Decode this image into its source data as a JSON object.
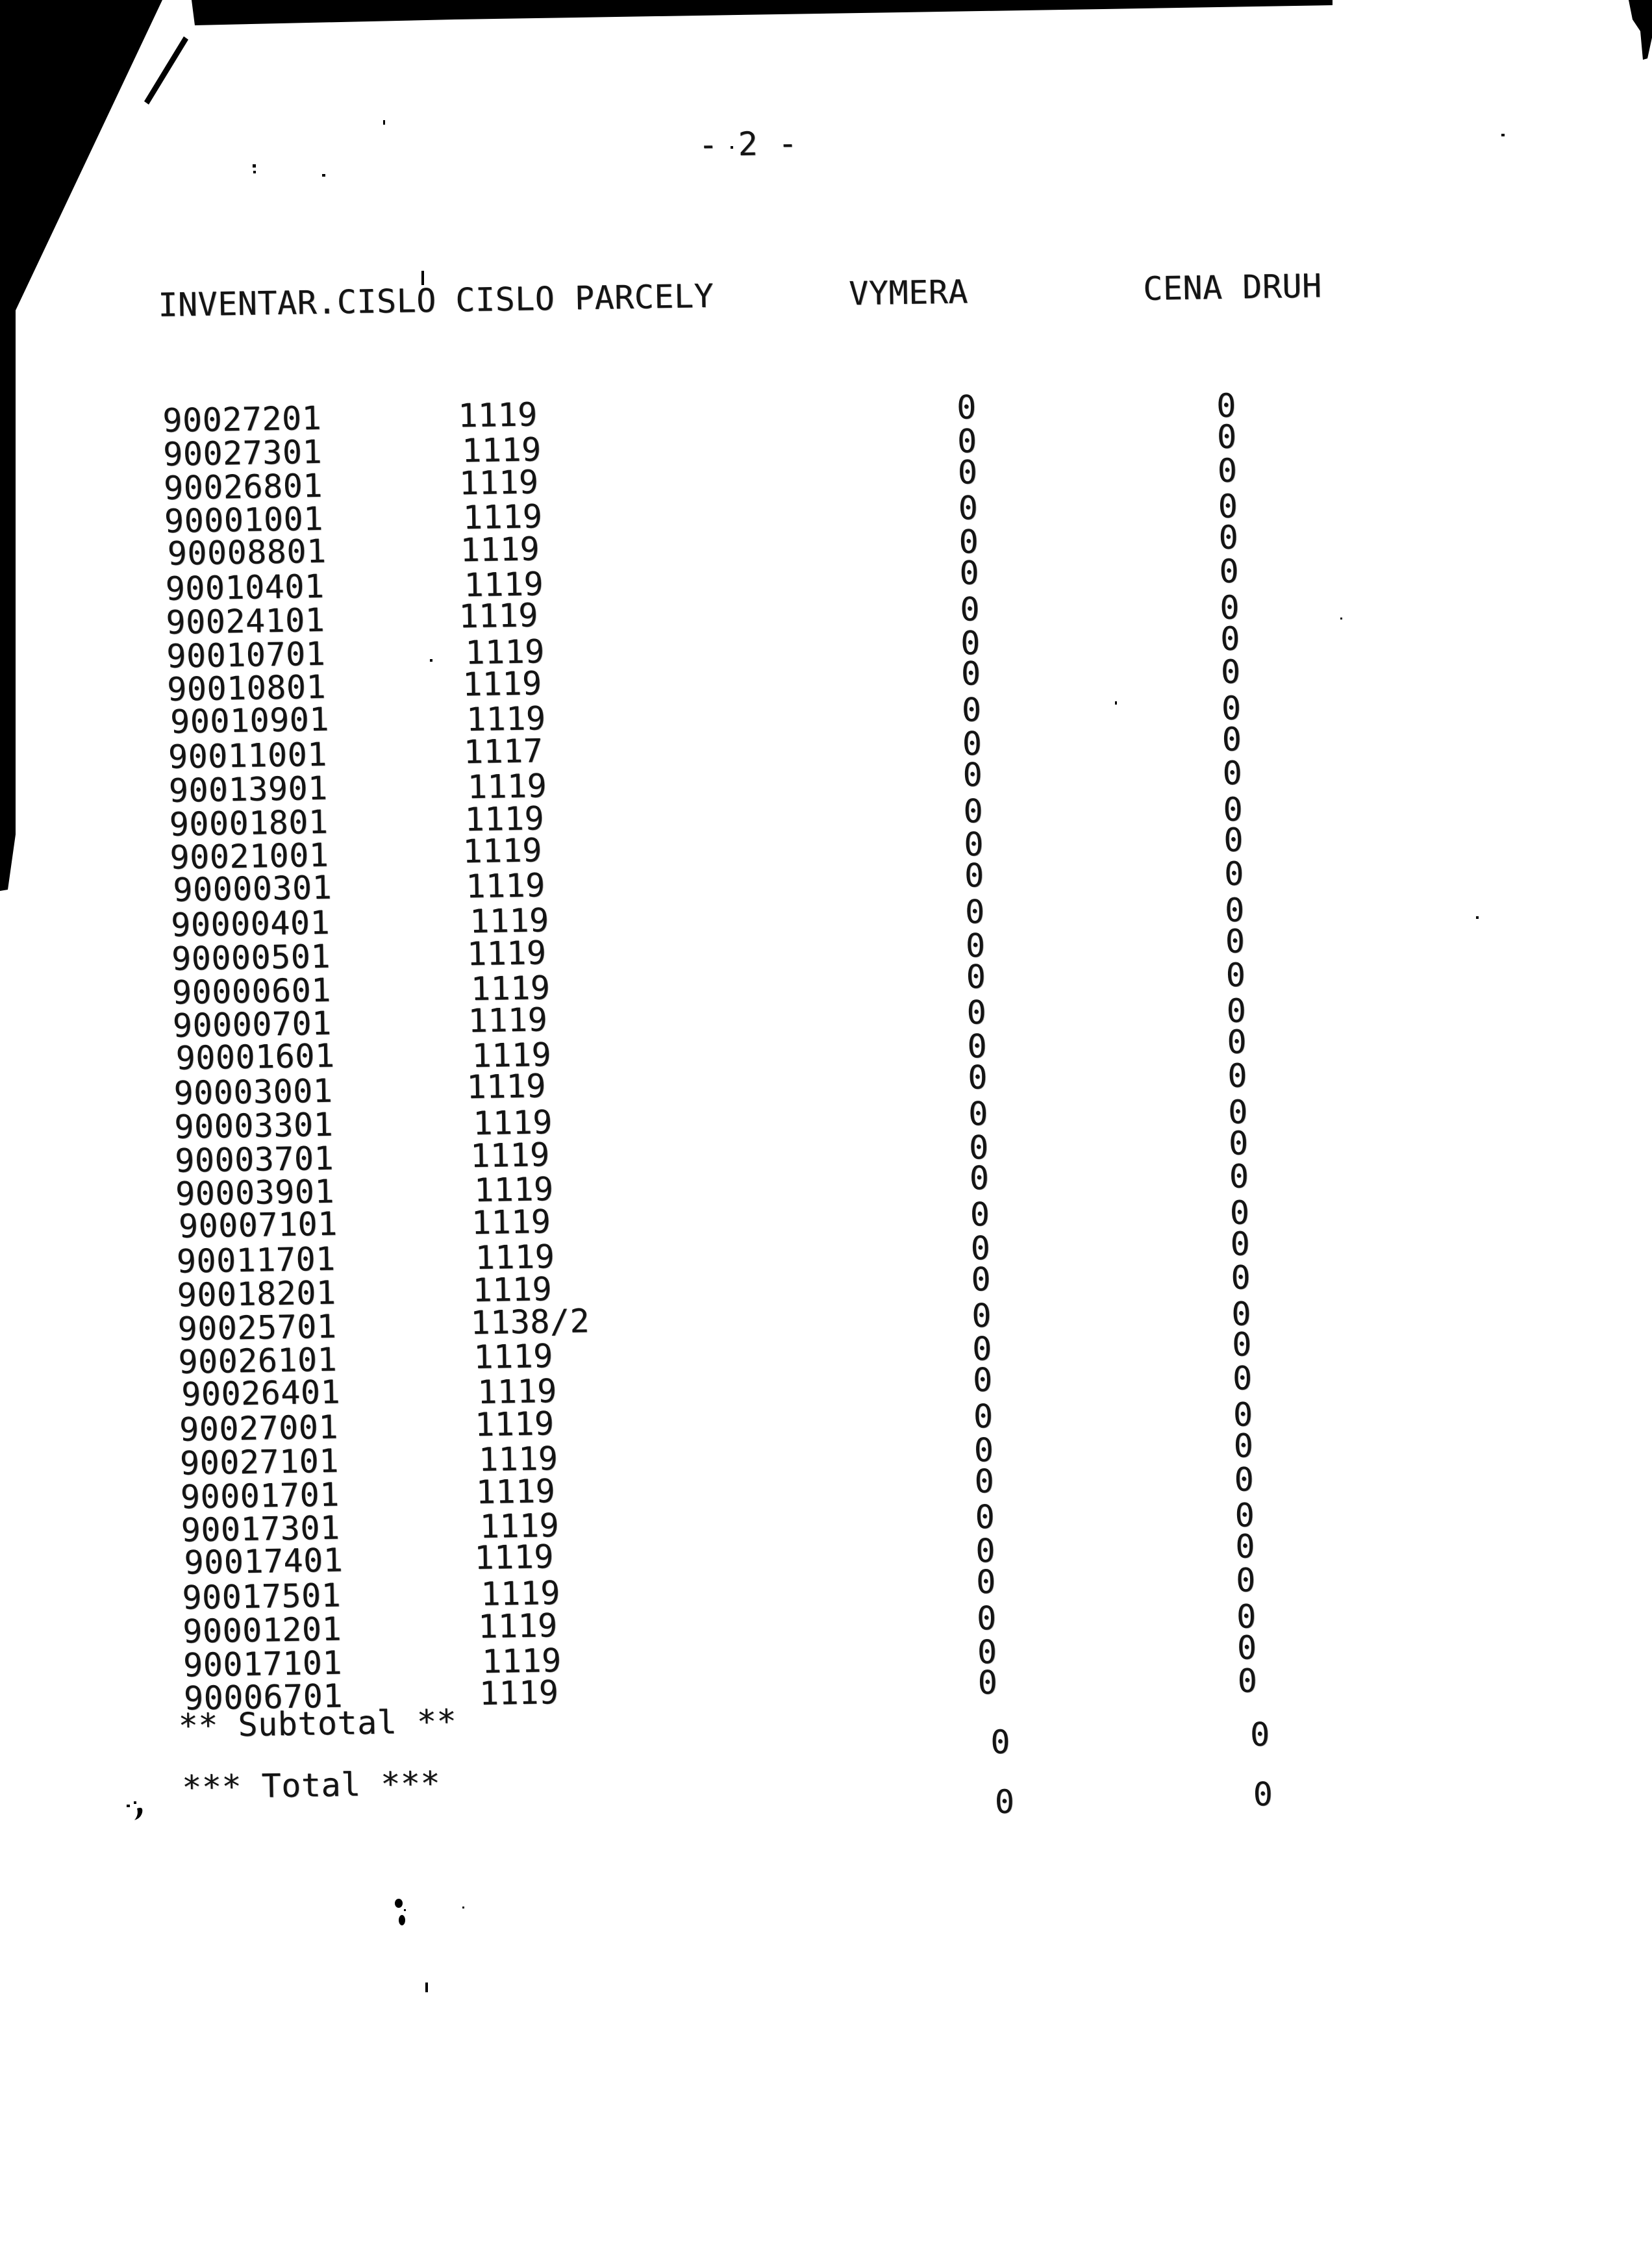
{
  "page": {
    "number_label": "- 2 -"
  },
  "table": {
    "header": {
      "inventar_cislo": "INVENTAR.CISLO",
      "cislo_parcely": "CISLO PARCELY",
      "vymera": "VYMERA",
      "cena_druh": "CENA DRUH"
    },
    "rows": [
      {
        "inventar": "90027201",
        "parcela": "1119",
        "vymera": "0",
        "cena": "0"
      },
      {
        "inventar": "90027301",
        "parcela": "1119",
        "vymera": "0",
        "cena": "0"
      },
      {
        "inventar": "90026801",
        "parcela": "1119",
        "vymera": "0",
        "cena": "0"
      },
      {
        "inventar": "90001001",
        "parcela": "1119",
        "vymera": "0",
        "cena": "0"
      },
      {
        "inventar": "90008801",
        "parcela": "1119",
        "vymera": "0",
        "cena": "0"
      },
      {
        "inventar": "90010401",
        "parcela": "1119",
        "vymera": "0",
        "cena": "0"
      },
      {
        "inventar": "90024101",
        "parcela": "1119",
        "vymera": "0",
        "cena": "0"
      },
      {
        "inventar": "90010701",
        "parcela": "1119",
        "vymera": "0",
        "cena": "0"
      },
      {
        "inventar": "90010801",
        "parcela": "1119",
        "vymera": "0",
        "cena": "0"
      },
      {
        "inventar": "90010901",
        "parcela": "1119",
        "vymera": "0",
        "cena": "0"
      },
      {
        "inventar": "90011001",
        "parcela": "1117",
        "vymera": "0",
        "cena": "0"
      },
      {
        "inventar": "90013901",
        "parcela": "1119",
        "vymera": "0",
        "cena": "0"
      },
      {
        "inventar": "90001801",
        "parcela": "1119",
        "vymera": "0",
        "cena": "0"
      },
      {
        "inventar": "90021001",
        "parcela": "1119",
        "vymera": "0",
        "cena": "0"
      },
      {
        "inventar": "90000301",
        "parcela": "1119",
        "vymera": "0",
        "cena": "0"
      },
      {
        "inventar": "90000401",
        "parcela": "1119",
        "vymera": "0",
        "cena": "0"
      },
      {
        "inventar": "90000501",
        "parcela": "1119",
        "vymera": "0",
        "cena": "0"
      },
      {
        "inventar": "90000601",
        "parcela": "1119",
        "vymera": "0",
        "cena": "0"
      },
      {
        "inventar": "90000701",
        "parcela": "1119",
        "vymera": "0",
        "cena": "0"
      },
      {
        "inventar": "90001601",
        "parcela": "1119",
        "vymera": "0",
        "cena": "0"
      },
      {
        "inventar": "90003001",
        "parcela": "1119",
        "vymera": "0",
        "cena": "0"
      },
      {
        "inventar": "90003301",
        "parcela": "1119",
        "vymera": "0",
        "cena": "0"
      },
      {
        "inventar": "90003701",
        "parcela": "1119",
        "vymera": "0",
        "cena": "0"
      },
      {
        "inventar": "90003901",
        "parcela": "1119",
        "vymera": "0",
        "cena": "0"
      },
      {
        "inventar": "90007101",
        "parcela": "1119",
        "vymera": "0",
        "cena": "0"
      },
      {
        "inventar": "90011701",
        "parcela": "1119",
        "vymera": "0",
        "cena": "0"
      },
      {
        "inventar": "90018201",
        "parcela": "1119",
        "vymera": "0",
        "cena": "0"
      },
      {
        "inventar": "90025701",
        "parcela": "1138/2",
        "vymera": "0",
        "cena": "0"
      },
      {
        "inventar": "90026101",
        "parcela": "1119",
        "vymera": "0",
        "cena": "0"
      },
      {
        "inventar": "90026401",
        "parcela": "1119",
        "vymera": "0",
        "cena": "0"
      },
      {
        "inventar": "90027001",
        "parcela": "1119",
        "vymera": "0",
        "cena": "0"
      },
      {
        "inventar": "90027101",
        "parcela": "1119",
        "vymera": "0",
        "cena": "0"
      },
      {
        "inventar": "90001701",
        "parcela": "1119",
        "vymera": "0",
        "cena": "0"
      },
      {
        "inventar": "90017301",
        "parcela": "1119",
        "vymera": "0",
        "cena": "0"
      },
      {
        "inventar": "90017401",
        "parcela": "1119",
        "vymera": "0",
        "cena": "0"
      },
      {
        "inventar": "90017501",
        "parcela": "1119",
        "vymera": "0",
        "cena": "0"
      },
      {
        "inventar": "90001201",
        "parcela": "1119",
        "vymera": "0",
        "cena": "0"
      },
      {
        "inventar": "90017101",
        "parcela": "1119",
        "vymera": "0",
        "cena": "0"
      },
      {
        "inventar": "90006701",
        "parcela": "1119",
        "vymera": "0",
        "cena": "0"
      }
    ],
    "subtotal": {
      "label": "** Subtotal **",
      "vymera": "0",
      "cena": "0"
    },
    "total": {
      "label": "*** Total ***",
      "vymera": "0",
      "cena": "0"
    }
  }
}
